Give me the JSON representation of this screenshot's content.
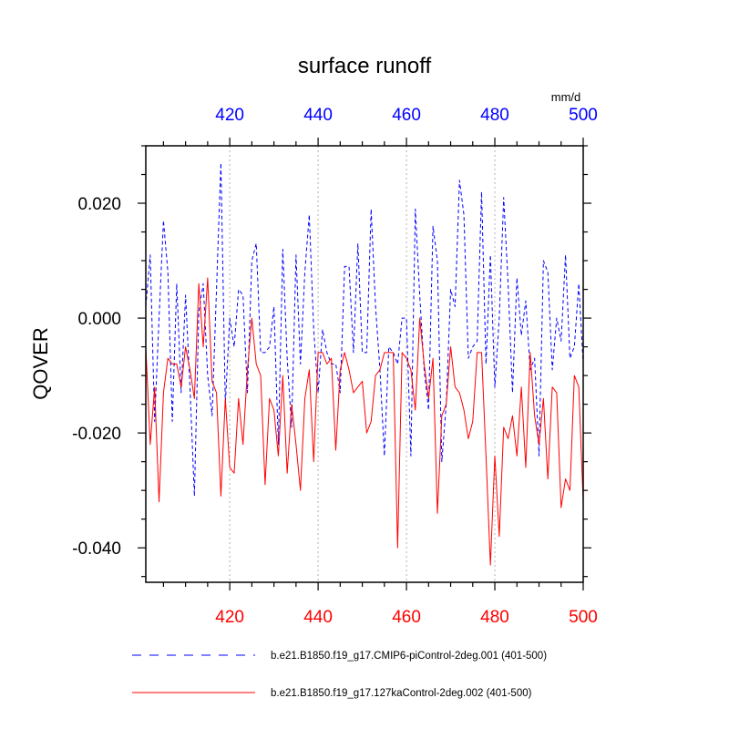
{
  "chart_data": {
    "type": "line",
    "title": "surface runoff",
    "ylabel": "QOVER",
    "units_label": "mm/d",
    "xlabel": "",
    "xlim": [
      401,
      500
    ],
    "ylim": [
      -0.046,
      0.03
    ],
    "grid": "vertical dotted at major x ticks",
    "x_ticks": [
      420,
      440,
      460,
      480,
      500
    ],
    "x_tick_labels": [
      "420",
      "440",
      "460",
      "480",
      "500"
    ],
    "y_ticks": [
      0.02,
      0.0,
      -0.02,
      -0.04
    ],
    "y_tick_labels": [
      "0.020",
      "0.000",
      "-0.020",
      "-0.040"
    ],
    "top_axis_color": "#0000ff",
    "bottom_axis_color": "#ff0000",
    "legend_position": "bottom",
    "x": [
      401,
      402,
      403,
      404,
      405,
      406,
      407,
      408,
      409,
      410,
      411,
      412,
      413,
      414,
      415,
      416,
      417,
      418,
      419,
      420,
      421,
      422,
      423,
      424,
      425,
      426,
      427,
      428,
      429,
      430,
      431,
      432,
      433,
      434,
      435,
      436,
      437,
      438,
      439,
      440,
      441,
      442,
      443,
      444,
      445,
      446,
      447,
      448,
      449,
      450,
      451,
      452,
      453,
      454,
      455,
      456,
      457,
      458,
      459,
      460,
      461,
      462,
      463,
      464,
      465,
      466,
      467,
      468,
      469,
      470,
      471,
      472,
      473,
      474,
      475,
      476,
      477,
      478,
      479,
      480,
      481,
      482,
      483,
      484,
      485,
      486,
      487,
      488,
      489,
      490,
      491,
      492,
      493,
      494,
      495,
      496,
      497,
      498,
      499,
      500
    ],
    "series": [
      {
        "name": "b.e21.B1850.f19_g17.CMIP6-piControl-2deg.001 (401-500)",
        "color": "#0000ff",
        "dash": "dashed",
        "values": [
          0.002,
          0.011,
          -0.018,
          0.0,
          0.017,
          0.008,
          -0.018,
          0.006,
          -0.013,
          0.004,
          -0.012,
          -0.031,
          0.001,
          0.006,
          -0.01,
          -0.017,
          0.005,
          0.027,
          -0.015,
          0.0,
          -0.005,
          0.005,
          0.004,
          -0.013,
          0.01,
          0.013,
          -0.006,
          -0.006,
          -0.005,
          0.002,
          -0.022,
          0.012,
          -0.007,
          -0.019,
          0.011,
          -0.008,
          0.008,
          0.018,
          -0.002,
          -0.013,
          -0.002,
          -0.006,
          -0.008,
          -0.008,
          -0.013,
          0.009,
          0.009,
          -0.006,
          0.013,
          -0.006,
          -0.006,
          0.019,
          0.002,
          -0.009,
          -0.024,
          -0.005,
          -0.006,
          -0.008,
          0.0,
          0.0,
          -0.024,
          0.019,
          0.004,
          -0.009,
          -0.016,
          0.016,
          0.01,
          -0.025,
          -0.015,
          0.005,
          0.002,
          0.024,
          0.018,
          -0.007,
          -0.005,
          -0.004,
          0.022,
          -0.008,
          0.011,
          -0.012,
          0.0,
          0.021,
          0.006,
          -0.013,
          0.007,
          -0.003,
          0.003,
          -0.009,
          -0.007,
          -0.024,
          0.01,
          0.008,
          -0.009,
          0.0,
          -0.004,
          0.011,
          -0.007,
          -0.005,
          0.006,
          -0.008
        ]
      },
      {
        "name": "b.e21.B1850.f19_g17.127kaControl-2deg.002 (401-500)",
        "color": "#ff0000",
        "dash": "solid",
        "values": [
          -0.005,
          -0.022,
          -0.012,
          -0.032,
          -0.013,
          -0.007,
          -0.008,
          -0.008,
          -0.012,
          -0.005,
          -0.009,
          -0.014,
          0.006,
          -0.005,
          0.007,
          -0.011,
          -0.013,
          -0.031,
          -0.014,
          -0.026,
          -0.027,
          -0.014,
          -0.022,
          -0.009,
          0.0,
          -0.008,
          -0.01,
          -0.029,
          -0.014,
          -0.016,
          -0.024,
          -0.01,
          -0.027,
          -0.015,
          -0.022,
          -0.03,
          -0.014,
          -0.009,
          -0.025,
          -0.006,
          -0.006,
          -0.008,
          -0.007,
          -0.023,
          -0.009,
          -0.006,
          -0.009,
          -0.013,
          -0.012,
          -0.011,
          -0.02,
          -0.018,
          -0.01,
          -0.009,
          -0.006,
          -0.006,
          -0.006,
          -0.04,
          -0.006,
          -0.007,
          -0.009,
          -0.016,
          0.0,
          -0.008,
          -0.014,
          -0.007,
          -0.034,
          -0.017,
          -0.015,
          -0.005,
          -0.012,
          -0.013,
          -0.016,
          -0.021,
          -0.018,
          -0.006,
          -0.006,
          -0.024,
          -0.043,
          -0.024,
          -0.038,
          -0.019,
          -0.021,
          -0.017,
          -0.024,
          -0.012,
          -0.026,
          -0.006,
          -0.017,
          -0.022,
          -0.014,
          -0.028,
          -0.012,
          -0.013,
          -0.033,
          -0.028,
          -0.03,
          -0.01,
          -0.012,
          -0.032
        ]
      }
    ]
  }
}
